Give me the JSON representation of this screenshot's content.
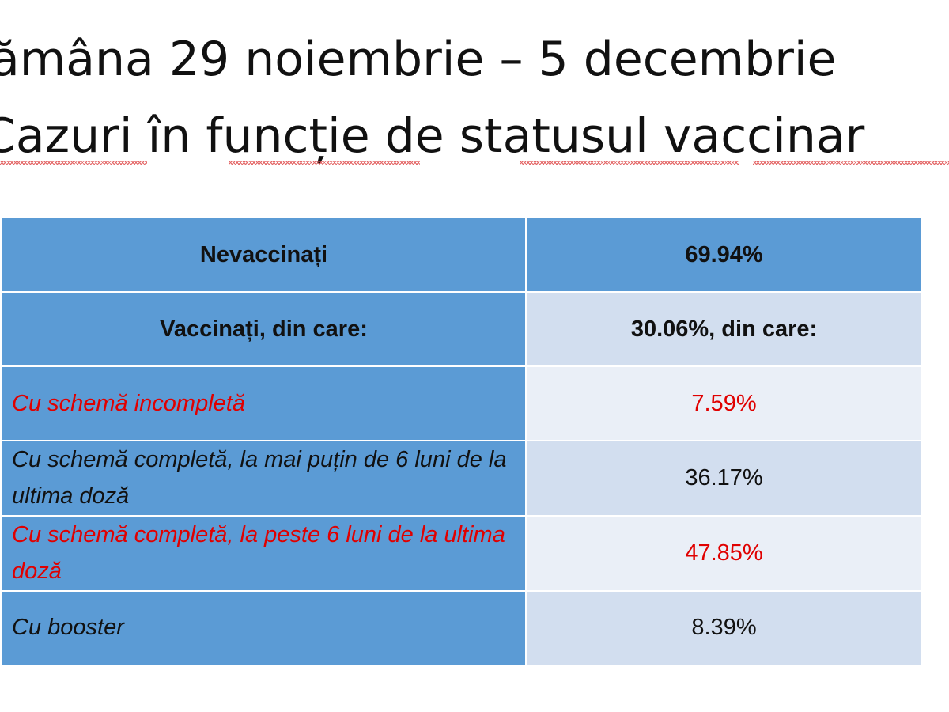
{
  "title": {
    "line1": "ămâna 29 noiembrie – 5 decembrie",
    "line2": "Cazuri în funcție de statusul vaccinar"
  },
  "table": {
    "rows": [
      {
        "label": "Nevaccinați",
        "value": "69.94%"
      },
      {
        "label": "Vaccinați, din care:",
        "value": "30.06%, din care:"
      },
      {
        "label": "Cu schemă incompletă",
        "value": "7.59%"
      },
      {
        "label": "Cu schemă completă, la mai puțin de 6 luni de la ultima doză",
        "value": "36.17%"
      },
      {
        "label": "Cu schemă completă, la peste 6 luni de la ultima doză",
        "value": "47.85%"
      },
      {
        "label": "Cu booster",
        "value": "8.39%"
      }
    ]
  },
  "colors": {
    "header_blue": "#5b9bd5",
    "row_light": "#d2deef",
    "row_lighter": "#eaeff7",
    "highlight_red": "#e00000"
  }
}
